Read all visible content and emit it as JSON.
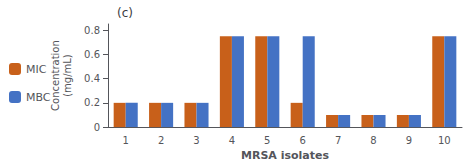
{
  "chart_data": {
    "type": "bar",
    "title": "(c)",
    "xlabel": "MRSA isolates",
    "ylabel": "Concentration\n(mg/mL)",
    "categories": [
      "1",
      "2",
      "3",
      "4",
      "5",
      "6",
      "7",
      "8",
      "9",
      "10"
    ],
    "series": [
      {
        "name": "MIC",
        "color": "#c8601a",
        "values": [
          0.2,
          0.2,
          0.2,
          0.75,
          0.75,
          0.2,
          0.1,
          0.1,
          0.1,
          0.75
        ]
      },
      {
        "name": "MBC",
        "color": "#4472c4",
        "values": [
          0.2,
          0.2,
          0.2,
          0.75,
          0.75,
          0.75,
          0.1,
          0.1,
          0.1,
          0.75
        ]
      }
    ],
    "ylim": [
      0,
      0.85
    ],
    "yticks": [
      0,
      0.2,
      0.4,
      0.6,
      0.8
    ],
    "grid": false,
    "legend": "left"
  }
}
